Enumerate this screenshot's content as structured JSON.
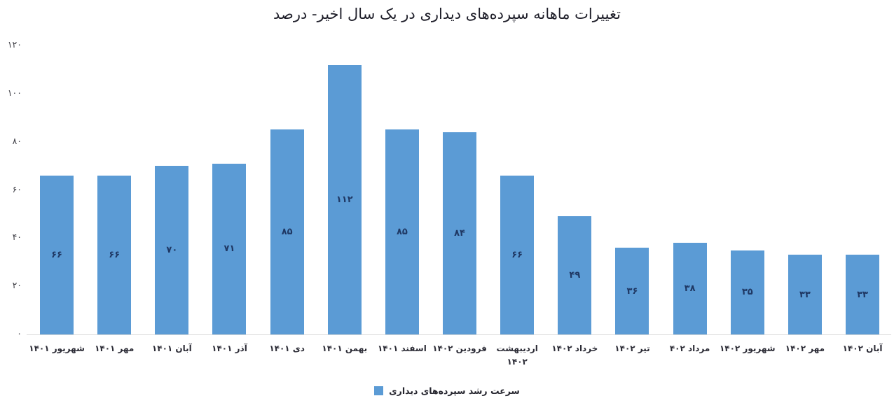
{
  "title": "تغییرات ماهانه سپرده‌های دیداری در یک سال اخیر- درصد",
  "colors": {
    "bar": "#5b9bd5",
    "value_label": "#1f3864",
    "baseline": "#d9d9d9"
  },
  "legend": {
    "label": "سرعت رشد سپرده‌های دیداری"
  },
  "chart_data": {
    "type": "bar",
    "title": "تغییرات ماهانه سپرده‌های دیداری در یک سال اخیر- درصد",
    "xlabel": "",
    "ylabel": "",
    "ylim": [
      0,
      120
    ],
    "grid": false,
    "legend_position": "bottom",
    "legend_entries": [
      "سرعت رشد سپرده‌های دیداری"
    ],
    "categories": [
      "شهریور ۱۴۰۱",
      "مهر ۱۴۰۱",
      "آبان ۱۴۰۱",
      "آذر ۱۴۰۱",
      "دی ۱۴۰۱",
      "بهمن ۱۴۰۱",
      "اسفند ۱۴۰۱",
      "فرودین ۱۴۰۲",
      "اردیبهشت\n۱۴۰۲",
      "خرداد ۱۴۰۲",
      "تیر ۱۴۰۲",
      "مرداد ۴۰۲",
      "شهریور ۱۴۰۲",
      "مهر ۱۴۰۲",
      "آبان ۱۴۰۲"
    ],
    "values": [
      66,
      66,
      70,
      71,
      85,
      112,
      85,
      84,
      66,
      49,
      36,
      38,
      35,
      33,
      33
    ],
    "value_labels": [
      "۶۶",
      "۶۶",
      "۷۰",
      "۷۱",
      "۸۵",
      "۱۱۲",
      "۸۵",
      "۸۴",
      "۶۶",
      "۴۹",
      "۳۶",
      "۳۸",
      "۳۵",
      "۳۳",
      "۳۳"
    ],
    "yticks": [
      0,
      20,
      40,
      60,
      80,
      100,
      120
    ],
    "ytick_labels": [
      "۰",
      "۲۰",
      "۴۰",
      "۶۰",
      "۸۰",
      "۱۰۰",
      "۱۲۰"
    ]
  }
}
